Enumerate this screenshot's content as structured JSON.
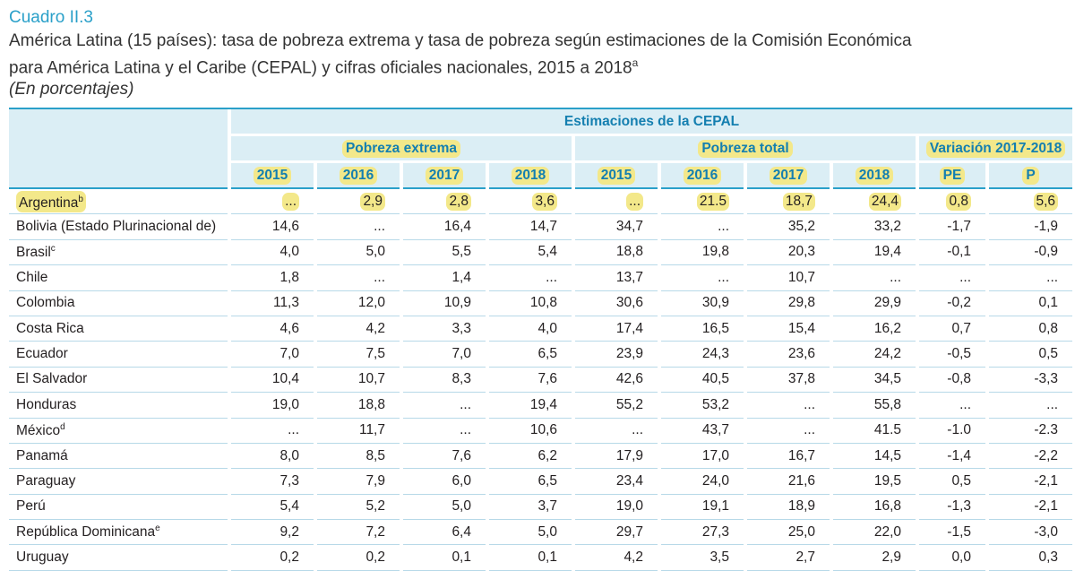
{
  "header": {
    "cuadro": "Cuadro II.3",
    "title_line1": "América Latina (15 países): tasa de pobreza extrema y tasa de pobreza según estimaciones de la Comisión Económica",
    "title_line2": "para América Latina y el Caribe (CEPAL) y cifras oficiales nacionales, 2015 a 2018",
    "title_note": "a",
    "subtitle": "(En porcentajes)"
  },
  "table": {
    "group_header": "Estimaciones de la CEPAL",
    "sub_headers": [
      "Pobreza extrema",
      "Pobreza total",
      "Variación 2017-2018"
    ],
    "columns": [
      "2015",
      "2016",
      "2017",
      "2018",
      "2015",
      "2016",
      "2017",
      "2018",
      "PE",
      "P"
    ],
    "rows": [
      {
        "country": "Argentina",
        "note": "b",
        "values": [
          "...",
          "2,9",
          "2,8",
          "3,6",
          "...",
          "21.5",
          "18,7",
          "24,4",
          "0,8",
          "5,6"
        ]
      },
      {
        "country": "Bolivia (Estado Plurinacional de)",
        "note": "",
        "values": [
          "14,6",
          "...",
          "16,4",
          "14,7",
          "34,7",
          "...",
          "35,2",
          "33,2",
          "-1,7",
          "-1,9"
        ]
      },
      {
        "country": "Brasil",
        "note": "c",
        "values": [
          "4,0",
          "5,0",
          "5,5",
          "5,4",
          "18,8",
          "19,8",
          "20,3",
          "19,4",
          "-0,1",
          "-0,9"
        ]
      },
      {
        "country": "Chile",
        "note": "",
        "values": [
          "1,8",
          "...",
          "1,4",
          "...",
          "13,7",
          "...",
          "10,7",
          "...",
          "...",
          "..."
        ]
      },
      {
        "country": "Colombia",
        "note": "",
        "values": [
          "11,3",
          "12,0",
          "10,9",
          "10,8",
          "30,6",
          "30,9",
          "29,8",
          "29,9",
          "-0,2",
          "0,1"
        ]
      },
      {
        "country": "Costa Rica",
        "note": "",
        "values": [
          "4,6",
          "4,2",
          "3,3",
          "4,0",
          "17,4",
          "16,5",
          "15,4",
          "16,2",
          "0,7",
          "0,8"
        ]
      },
      {
        "country": "Ecuador",
        "note": "",
        "values": [
          "7,0",
          "7,5",
          "7,0",
          "6,5",
          "23,9",
          "24,3",
          "23,6",
          "24,2",
          "-0,5",
          "0,5"
        ]
      },
      {
        "country": "El Salvador",
        "note": "",
        "values": [
          "10,4",
          "10,7",
          "8,3",
          "7,6",
          "42,6",
          "40,5",
          "37,8",
          "34,5",
          "-0,8",
          "-3,3"
        ]
      },
      {
        "country": "Honduras",
        "note": "",
        "values": [
          "19,0",
          "18,8",
          "...",
          "19,4",
          "55,2",
          "53,2",
          "...",
          "55,8",
          "...",
          "..."
        ]
      },
      {
        "country": "México",
        "note": "d",
        "values": [
          "...",
          "11,7",
          "...",
          "10,6",
          "...",
          "43,7",
          "...",
          "41.5",
          "-1.0",
          "-2.3"
        ]
      },
      {
        "country": "Panamá",
        "note": "",
        "values": [
          "8,0",
          "8,5",
          "7,6",
          "6,2",
          "17,9",
          "17,0",
          "16,7",
          "14,5",
          "-1,4",
          "-2,2"
        ]
      },
      {
        "country": "Paraguay",
        "note": "",
        "values": [
          "7,3",
          "7,9",
          "6,0",
          "6,5",
          "23,4",
          "24,0",
          "21,6",
          "19,5",
          "0,5",
          "-2,1"
        ]
      },
      {
        "country": "Perú",
        "note": "",
        "values": [
          "5,4",
          "5,2",
          "5,0",
          "3,7",
          "19,0",
          "19,1",
          "18,9",
          "16,8",
          "-1,3",
          "-2,1"
        ]
      },
      {
        "country": "República Dominicana",
        "note": "e",
        "values": [
          "9,2",
          "7,2",
          "6,4",
          "5,0",
          "29,7",
          "27,3",
          "25,0",
          "22,0",
          "-1,5",
          "-3,0"
        ]
      },
      {
        "country": "Uruguay",
        "note": "",
        "values": [
          "0,2",
          "0,2",
          "0,1",
          "0,1",
          "4,2",
          "3,5",
          "2,7",
          "2,9",
          "0,0",
          "0,3"
        ]
      }
    ]
  },
  "colors": {
    "accent": "#2aa0c9",
    "header_bg": "#dbeef5",
    "header_text": "#147fb0",
    "highlight": "#f3e88a"
  }
}
